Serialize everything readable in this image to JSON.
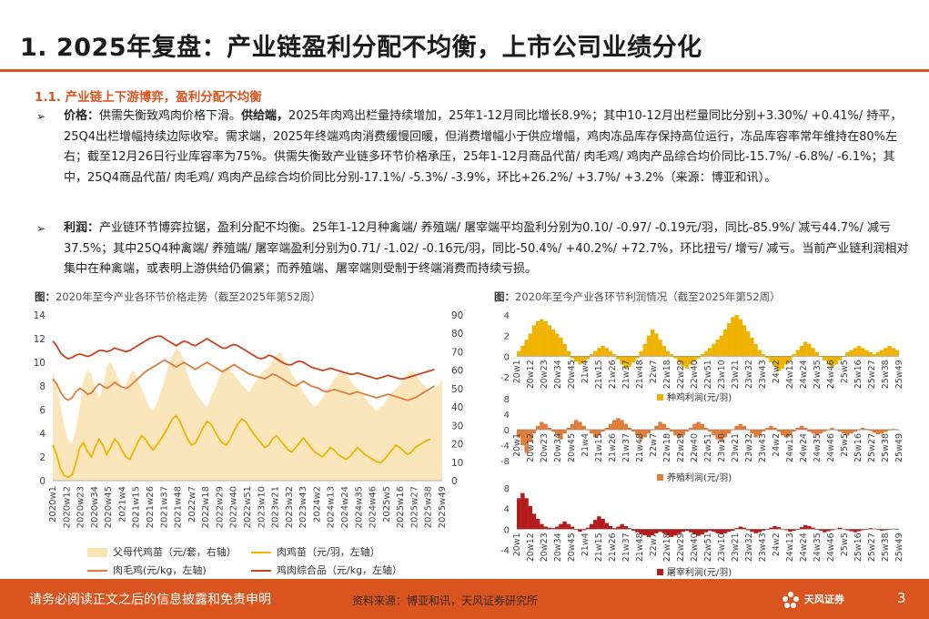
{
  "header": {
    "title": "1. 2025年复盘：产业链盈利分配不均衡，上市公司业绩分化"
  },
  "section": {
    "heading": "1.1. 产业链上下游博弈，盈利分配不均衡"
  },
  "bullets": [
    {
      "label": "价格：",
      "text": "供需失衡致鸡肉价格下滑。",
      "bold2": "供给端，",
      "text2": "2025年肉鸡出栏量持续增加，25年1-12月同比增长8.9%；其中10-12月出栏量同比分别+3.30%/ +0.41%/ 持平，25Q4出栏增幅持续边际收窄。需求端，2025年终端鸡肉消费缓慢回暖，但消费增幅小于供应增幅，鸡肉冻品库存保持高位运行，冻品库容率常年维持在80%左右；截至12月26日行业库容率为75%。供需失衡致产业链多环节价格承压，25年1-12月商品代苗/ 肉毛鸡/ 鸡肉产品综合均价同比-15.7%/ -6.8%/ -6.1%；其中，25Q4商品代苗/ 肉毛鸡/ 鸡肉产品综合均价同比分别-17.1%/ -5.3%/ -3.9%，环比+26.2%/ +3.7%/ +3.2%（来源：博亚和讯）。"
    },
    {
      "label": "利润：",
      "text": "产业链环节博弈拉锯，盈利分配不均衡。25年1-12月种禽端/ 养殖端/ 屠宰端平均盈利分别为0.10/ -0.97/ -0.19元/羽，同比-85.9%/ 减亏44.7%/ 减亏37.5%；其中25Q4种禽端/ 养殖端/ 屠宰端盈利分别为0.71/ -1.02/ -0.16元/羽，同比-50.4%/ +40.2%/ +72.7%，环比扭亏/ 增亏/ 减亏。当前产业链利润相对集中在种禽端，或表明上游供给仍偏紧；而养殖端、屠宰端则受制于终端消费而持续亏损。"
    }
  ],
  "figures": {
    "left_caption_label": "图：",
    "left_caption": "2020年至今产业各环节价格走势（截至2025年第52周）",
    "right_caption_label": "图：",
    "right_caption": "2020年至今产业各环节利润情况（截至2025年第52周）"
  },
  "footer": {
    "notice": "请务必阅读正文之后的信息披露和免责申明",
    "source": "资料来源：博亚和讯，天风证券研究所",
    "logo": "天风证券",
    "page": "3"
  },
  "colors": {
    "accent": "#d9541e",
    "parent_fill": "#fbe3b4",
    "chick": "#f0b400",
    "broiler": "#e07d3a",
    "meat": "#c9431c",
    "breeder": "#f0b400",
    "farming": "#e07d3a",
    "slaughter": "#b71c1c"
  },
  "chart_data": [
    {
      "type": "line",
      "title": "",
      "x_ticks": [
        "2020w1",
        "2020w12",
        "2020w23",
        "2020w34",
        "2020w45",
        "2021w4",
        "2021w15",
        "2021w26",
        "2021w37",
        "2021w48",
        "2022w7",
        "2022w18",
        "2022w29",
        "2022w40",
        "2022w51",
        "2023w10",
        "2023w21",
        "2023w32",
        "2023w43",
        "2024w2",
        "2024w13",
        "2024w24",
        "2024w35",
        "2024w46",
        "2025w5",
        "2025w16",
        "2025w27",
        "2025w38",
        "2025w49"
      ],
      "x_tick_labels": [
        "2020w1",
        "2020w12",
        "2020w23",
        "2020w34",
        "2020w45",
        "2021w4",
        "2021w15",
        "2021w26",
        "2021w37",
        "2021w48",
        "2022w7",
        "2022w18",
        "2022w29",
        "2022w40",
        "2022w51",
        "2023w10",
        "2023w21",
        "2023w32",
        "2023w43",
        "2024w2",
        "2024w13",
        "2024w24",
        "2024w35",
        "2024w46",
        "2025w5",
        "2025w16",
        "2025w27",
        "2025w38",
        "2025w49"
      ],
      "y_left_ticks": [
        0,
        2,
        4,
        6,
        8,
        10,
        12,
        14
      ],
      "y_right_ticks": [
        0,
        10,
        20,
        30,
        40,
        50,
        60,
        70,
        80,
        90
      ],
      "ylim_left": [
        0,
        14
      ],
      "ylim_right": [
        0,
        90
      ],
      "series": [
        {
          "name": "父母代鸡苗（元/套，右轴）",
          "axis": "right",
          "kind": "area",
          "values": [
            60,
            52,
            40,
            30,
            22,
            20,
            28,
            40,
            55,
            60,
            58,
            50,
            45,
            50,
            62,
            65,
            60,
            55,
            48,
            52,
            58,
            60,
            55,
            50,
            45,
            40,
            38,
            42,
            48,
            55,
            62,
            68,
            72,
            70,
            65,
            58,
            52,
            48,
            45,
            42,
            40,
            45,
            50,
            55,
            60,
            62,
            60,
            58,
            55,
            52,
            50,
            48,
            52,
            55,
            58,
            60,
            62,
            65,
            68,
            70,
            66,
            62,
            58,
            55,
            52,
            48,
            45,
            42,
            40,
            42,
            45,
            48,
            52,
            55,
            58,
            60,
            58,
            55,
            52,
            50,
            48,
            45,
            42,
            40,
            38,
            40,
            42,
            45,
            48,
            50,
            52,
            55,
            58,
            60,
            58,
            55,
            52,
            50,
            48,
            50,
            52,
            55
          ]
        },
        {
          "name": "肉鸡苗（元/羽，左轴）",
          "axis": "left",
          "kind": "line",
          "values": [
            3.0,
            2.2,
            1.0,
            0.4,
            0.3,
            0.5,
            1.5,
            2.8,
            3.2,
            2.5,
            2.0,
            2.8,
            3.5,
            3.0,
            2.2,
            2.8,
            3.5,
            3.2,
            2.5,
            2.0,
            1.8,
            2.5,
            3.2,
            3.8,
            3.5,
            3.0,
            2.6,
            3.0,
            3.5,
            4.0,
            4.6,
            5.2,
            5.5,
            5.0,
            4.2,
            3.5,
            3.0,
            3.2,
            3.8,
            4.5,
            5.0,
            4.8,
            4.2,
            3.6,
            3.2,
            3.0,
            3.5,
            4.2,
            4.8,
            5.2,
            5.0,
            4.5,
            4.0,
            3.6,
            3.2,
            2.8,
            3.0,
            3.5,
            3.8,
            3.4,
            3.0,
            2.6,
            2.4,
            2.8,
            3.2,
            3.6,
            3.2,
            2.8,
            2.4,
            2.2,
            2.0,
            2.4,
            2.8,
            2.6,
            2.2,
            2.0,
            1.8,
            2.0,
            2.4,
            2.8,
            2.5,
            2.2,
            2.0,
            1.8,
            1.6,
            1.5,
            1.8,
            2.2,
            2.6,
            3.0,
            2.8,
            2.5,
            2.2,
            2.4,
            2.8,
            3.0,
            3.2,
            3.4,
            3.5
          ]
        },
        {
          "name": "肉毛鸡(元/kg，左轴)",
          "axis": "left",
          "kind": "line",
          "values": [
            8.6,
            8.2,
            7.5,
            7.0,
            6.8,
            7.0,
            7.5,
            7.8,
            7.6,
            7.3,
            7.4,
            7.8,
            8.2,
            8.0,
            7.8,
            8.0,
            8.3,
            8.1,
            7.9,
            7.8,
            8.0,
            8.3,
            8.6,
            8.9,
            9.2,
            9.4,
            9.6,
            9.8,
            10.0,
            10.2,
            10.0,
            9.8,
            9.6,
            9.8,
            10.0,
            9.8,
            9.6,
            9.4,
            9.6,
            9.8,
            10.0,
            9.8,
            9.6,
            9.4,
            9.2,
            9.4,
            9.6,
            9.8,
            9.6,
            9.4,
            9.2,
            9.0,
            8.9,
            8.8,
            8.7,
            8.6,
            8.8,
            9.0,
            8.9,
            8.7,
            8.5,
            8.3,
            8.1,
            8.0,
            8.2,
            8.4,
            8.2,
            8.0,
            7.9,
            7.8,
            7.6,
            7.5,
            7.6,
            7.7,
            7.6,
            7.5,
            7.4,
            7.3,
            7.4,
            7.5,
            7.4,
            7.3,
            7.2,
            7.1,
            7.0,
            7.1,
            7.2,
            7.3,
            7.2,
            7.1,
            7.0,
            6.9,
            6.8,
            6.9,
            7.0,
            7.2,
            7.4,
            7.6,
            7.8,
            8.0
          ]
        },
        {
          "name": "鸡肉综合品（元/kg，左轴）",
          "axis": "left",
          "kind": "line",
          "values": [
            11.8,
            11.4,
            10.8,
            10.5,
            10.3,
            10.4,
            10.6,
            10.7,
            10.6,
            10.5,
            10.6,
            10.8,
            11.0,
            11.0,
            10.9,
            11.0,
            11.2,
            11.1,
            11.0,
            10.9,
            11.0,
            11.2,
            11.4,
            11.6,
            11.8,
            12.0,
            12.1,
            12.2,
            12.2,
            12.0,
            11.8,
            11.6,
            11.4,
            11.6,
            11.8,
            11.7,
            11.5,
            11.4,
            11.6,
            11.8,
            12.0,
            11.8,
            11.6,
            11.4,
            11.2,
            11.2,
            11.4,
            11.5,
            11.4,
            11.2,
            11.0,
            10.8,
            10.6,
            10.4,
            10.3,
            10.4,
            10.6,
            10.5,
            10.3,
            10.1,
            9.9,
            9.8,
            9.8,
            10.0,
            10.1,
            10.0,
            9.8,
            9.6,
            9.5,
            9.4,
            9.3,
            9.4,
            9.5,
            9.4,
            9.3,
            9.2,
            9.1,
            9.0,
            9.0,
            9.1,
            9.0,
            8.9,
            8.8,
            8.7,
            8.6,
            8.7,
            8.8,
            8.9,
            8.8,
            8.7,
            8.6,
            8.6,
            8.7,
            8.8,
            8.9,
            9.0,
            9.1,
            9.2,
            9.3,
            9.4
          ]
        }
      ],
      "legend": [
        {
          "name": "父母代鸡苗（元/套，右轴）",
          "kind": "area"
        },
        {
          "name": "肉鸡苗（元/羽，左轴）",
          "kind": "line"
        },
        {
          "name": "肉毛鸡(元/kg，左轴)",
          "kind": "line"
        },
        {
          "name": "鸡肉综合品（元/kg，左轴）",
          "kind": "line"
        }
      ],
      "legend_position": "bottom"
    },
    {
      "type": "bar",
      "title": "",
      "series": [
        {
          "name": "种鸡利润(元/羽)",
          "values": [
            0.5,
            1.0,
            1.6,
            2.2,
            3.0,
            3.4,
            3.6,
            3.4,
            3.0,
            2.6,
            2.2,
            1.8,
            1.2,
            0.5,
            -0.2,
            -0.5,
            -0.8,
            -0.6,
            -0.3,
            0.2,
            0.5,
            0.8,
            1.0,
            0.8,
            0.5,
            0.2,
            -0.3,
            -0.8,
            -1.2,
            -1.0,
            -0.6,
            -0.2,
            0.5,
            1.2,
            2.0,
            2.6,
            2.2,
            1.6,
            1.0,
            0.5,
            0.2,
            -0.2,
            -0.6,
            -1.0,
            -1.2,
            -0.8,
            -0.5,
            -0.2,
            0.2,
            0.5,
            0.8,
            1.2,
            1.6,
            2.0,
            2.6,
            3.2,
            3.8,
            4.0,
            3.6,
            3.0,
            2.4,
            1.8,
            1.2,
            0.6,
            0.2,
            -0.2,
            -0.6,
            -1.0,
            -1.4,
            -1.2,
            -0.8,
            -0.4,
            0.2,
            0.6,
            1.0,
            1.4,
            1.2,
            0.8,
            0.4,
            0.0,
            -0.4,
            -0.8,
            -1.0,
            -0.8,
            -0.4,
            0.0,
            0.4,
            0.6,
            0.8,
            1.0,
            0.8,
            0.6,
            0.4,
            0.2,
            0.4,
            0.6,
            0.8,
            1.0,
            0.8,
            0.6
          ]
        }
      ],
      "x_tick_labels": [
        "20w1",
        "20w12",
        "20w23",
        "20w34",
        "20w45",
        "21w4",
        "21w15",
        "21w26",
        "21w37",
        "21w48",
        "22w7",
        "22w18",
        "22w29",
        "22w40",
        "22w51",
        "23w10",
        "23w21",
        "23w32",
        "23w43",
        "24w2",
        "24w13",
        "24w24",
        "24w35",
        "24w46",
        "25w5",
        "25w16",
        "25w27",
        "25w38",
        "25w49"
      ],
      "y_ticks": [
        -2,
        0,
        2,
        4
      ],
      "ylim": [
        -2,
        4
      ],
      "legend_position": "bottom"
    },
    {
      "type": "bar",
      "title": "",
      "series": [
        {
          "name": "养殖利润(元/羽)",
          "values": [
            -2.0,
            -4.0,
            -6.0,
            -3.0,
            -1.0,
            1.0,
            2.0,
            1.5,
            0.5,
            -0.5,
            -1.5,
            -2.5,
            -1.0,
            0.5,
            1.5,
            2.5,
            2.0,
            1.0,
            0.0,
            -1.0,
            -2.0,
            -1.5,
            -0.5,
            0.5,
            1.5,
            2.5,
            3.0,
            2.5,
            1.5,
            0.5,
            -0.5,
            -1.5,
            -2.5,
            -2.0,
            -1.0,
            0.0,
            1.0,
            2.0,
            1.5,
            0.5,
            -0.5,
            -1.5,
            -2.0,
            -1.5,
            -0.5,
            0.5,
            1.5,
            2.0,
            1.5,
            0.5,
            -0.5,
            -1.5,
            -2.5,
            -3.0,
            -2.0,
            -1.0,
            0.0,
            1.0,
            1.5,
            1.0,
            0.0,
            -1.0,
            -2.0,
            -1.5,
            -0.5,
            0.5,
            1.0,
            0.5,
            -0.5,
            -1.5,
            -2.0,
            -1.5,
            -0.5,
            0.5,
            1.0,
            0.5,
            -0.5,
            -1.0,
            -1.5,
            -1.0,
            -0.5,
            0.0,
            0.5,
            0.0,
            -0.5,
            -1.0,
            -1.5,
            -1.0,
            -0.5,
            0.0,
            0.5,
            0.2,
            -0.3,
            -0.8,
            -1.2,
            -1.0,
            -0.6,
            -0.2,
            0.2,
            0.0
          ]
        }
      ],
      "x_tick_labels": [
        "20w1",
        "20w12",
        "20w23",
        "20w34",
        "20w45",
        "21w4",
        "21w15",
        "21w26",
        "21w37",
        "21w48",
        "22w7",
        "22w18",
        "22w29",
        "22w40",
        "22w51",
        "23w10",
        "23w21",
        "23w32",
        "23w43",
        "24w2",
        "24w13",
        "24w24",
        "24w35",
        "24w46",
        "25w5",
        "25w16",
        "25w27",
        "25w38",
        "25w49"
      ],
      "y_ticks": [
        -8,
        -4,
        0,
        4,
        8
      ],
      "ylim": [
        -8,
        8
      ],
      "legend_position": "bottom"
    },
    {
      "type": "bar",
      "title": "",
      "series": [
        {
          "name": "屠宰利润(元/羽)",
          "values": [
            6.0,
            7.0,
            6.0,
            4.5,
            3.0,
            2.0,
            1.0,
            0.5,
            0.3,
            0.2,
            0.5,
            1.0,
            1.5,
            1.0,
            0.5,
            0.0,
            -0.5,
            -0.2,
            0.3,
            1.0,
            1.8,
            2.5,
            2.0,
            1.2,
            0.6,
            0.2,
            0.5,
            1.0,
            0.6,
            0.2,
            -0.3,
            -0.6,
            -1.0,
            -1.2,
            -1.5,
            -1.2,
            -0.8,
            -0.5,
            -0.8,
            -1.2,
            -1.5,
            -1.2,
            -0.8,
            -0.5,
            -0.3,
            -0.6,
            -1.0,
            -1.3,
            -1.0,
            -0.6,
            -0.3,
            -0.5,
            -0.8,
            -1.0,
            -0.8,
            -0.5,
            -0.3,
            0.2,
            0.5,
            0.3,
            -0.2,
            -0.5,
            -0.8,
            -0.6,
            -0.3,
            0.0,
            0.3,
            0.6,
            0.4,
            0.1,
            -0.2,
            -0.5,
            -0.3,
            0.0,
            0.4,
            0.8,
            0.6,
            0.3,
            0.0,
            -0.3,
            -0.6,
            -0.4,
            -0.2,
            0.1,
            0.3,
            0.1,
            -0.2,
            -0.4,
            -0.6,
            -0.4,
            -0.2,
            0.0,
            0.2,
            0.1,
            -0.1,
            -0.3,
            -0.2,
            0.0,
            0.1,
            -0.1
          ]
        }
      ],
      "x_tick_labels": [
        "20w1",
        "20w12",
        "20w23",
        "20w34",
        "20w45",
        "21w4",
        "21w15",
        "21w26",
        "21w37",
        "21w48",
        "22w7",
        "22w18",
        "22w29",
        "22w40",
        "22w51",
        "23w10",
        "23w21",
        "23w32",
        "23w43",
        "24w2",
        "24w13",
        "24w24",
        "24w35",
        "24w46",
        "25w5",
        "25w16",
        "25w27",
        "25w38",
        "25w49"
      ],
      "y_ticks": [
        -4,
        0,
        4,
        8
      ],
      "ylim": [
        -4,
        8
      ],
      "legend_position": "bottom"
    }
  ]
}
